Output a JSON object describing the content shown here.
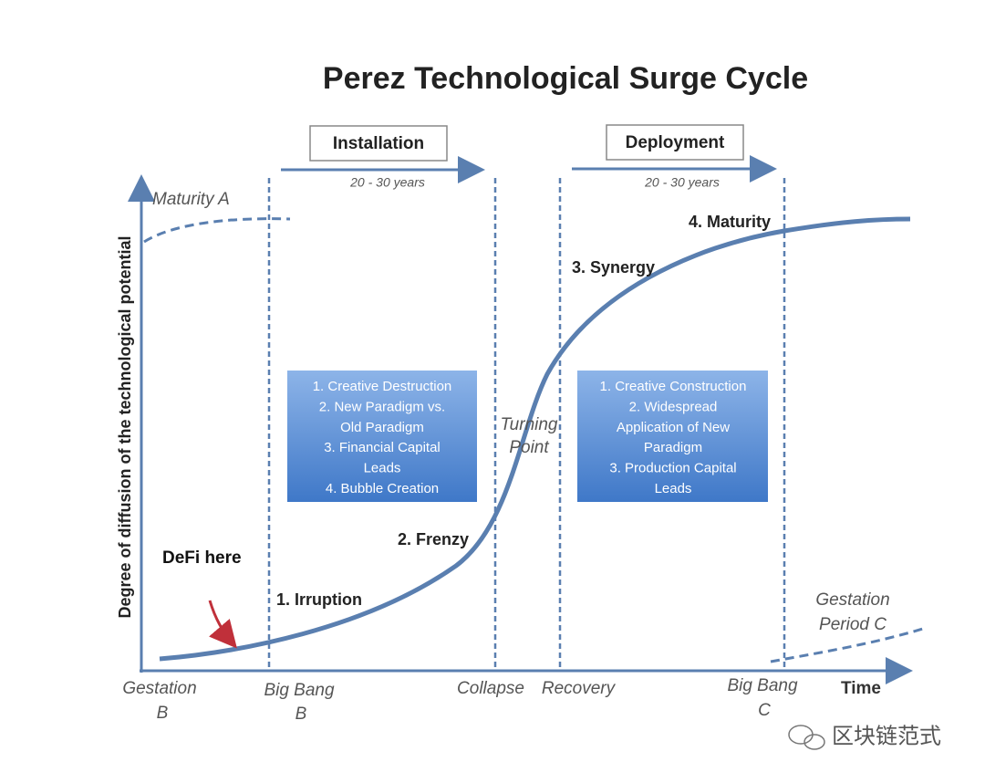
{
  "title": "Perez Technological Surge Cycle",
  "periods": [
    {
      "label": "Installation",
      "duration": "20 - 30 years"
    },
    {
      "label": "Deployment",
      "duration": "20 - 30 years"
    }
  ],
  "y_axis_label": "Degree of diffusion of the technological potential",
  "maturity_a": "Maturity A",
  "phases": [
    "1. Irruption",
    "2. Frenzy",
    "3. Synergy",
    "4. Maturity"
  ],
  "turning_point": [
    "Turning",
    "Point"
  ],
  "boxes": [
    [
      "1. Creative Destruction",
      "2. New Paradigm vs.",
      "Old Paradigm",
      "3. Financial Capital",
      "Leads",
      "4. Bubble Creation"
    ],
    [
      "1. Creative Construction",
      "2. Widespread",
      "Application of New",
      "Paradigm",
      "3. Production Capital",
      "Leads"
    ]
  ],
  "annotation": "DeFi here",
  "gestation_c": [
    "Gestation",
    "Period C"
  ],
  "x_labels": {
    "gestation_b": [
      "Gestation",
      "B"
    ],
    "big_bang_b": [
      "Big Bang",
      "B"
    ],
    "collapse": "Collapse",
    "recovery": "Recovery",
    "big_bang_c": [
      "Big Bang",
      "C"
    ],
    "time": "Time"
  },
  "watermark": "区块链范式"
}
